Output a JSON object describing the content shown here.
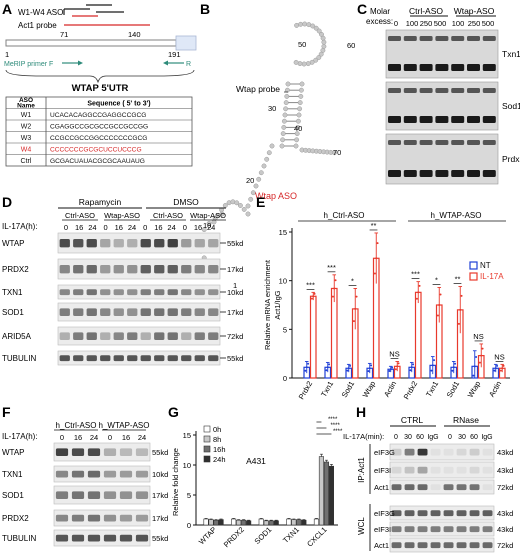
{
  "panels": {
    "A": "A",
    "B": "B",
    "C": "C",
    "D": "D",
    "E": "E",
    "F": "F",
    "G": "G",
    "H": "H"
  },
  "panelA": {
    "aso_label": "W1-W4 ASO",
    "probe_label": "Act1 probe",
    "pos_71": "71",
    "pos_140": "140",
    "pos_1": "1",
    "pos_191": "191",
    "primer_f": "MeRIP primer F",
    "primer_r": "R",
    "utr_title": "WTAP 5'UTR",
    "table_head": [
      "ASO Name",
      "Sequence ( 5' to 3')"
    ],
    "table_rows": [
      {
        "name": "W1",
        "seq": "UCACACAGGCCGAGGCCGCG",
        "red": false
      },
      {
        "name": "W2",
        "seq": "CGAGGCCGCGCCGCCGCCGG",
        "red": false
      },
      {
        "name": "W3",
        "seq": "CCGCCGCCGGCCCCCCCGCG",
        "red": false
      },
      {
        "name": "W4",
        "seq": "CCCCCCCGCGCUCCUCCCG",
        "red": true
      },
      {
        "name": "Ctrl",
        "seq": "GCGACUAUACGCGCAAUAUG",
        "red": false
      }
    ],
    "colors": {
      "red": "#d62728",
      "primer": "#2e8b7a",
      "gray": "#808080"
    }
  },
  "panelB": {
    "probe_label": "Wtap probe",
    "aso_label": "Wtap ASO",
    "nums": [
      "50",
      "60",
      "70",
      "40",
      "30",
      "20",
      "10",
      "1"
    ]
  },
  "panelC": {
    "molar": "Molar",
    "excess": "excess:",
    "ctrl": "Ctrl-ASO",
    "wtap": "Wtap-ASO",
    "lanes": [
      "0",
      "100",
      "250",
      "500",
      "100",
      "250",
      "500"
    ],
    "genes": [
      "Txn1",
      "Sod1",
      "Prdx2"
    ]
  },
  "panelD": {
    "rapa": "Rapamycin",
    "dmso": "DMSO",
    "groups": [
      "Ctrl-ASO",
      "Wtap-ASO",
      "Ctrl-ASO",
      "Wtap-ASO"
    ],
    "il17": "IL-17A(h):",
    "times": [
      "0",
      "16",
      "24",
      "0",
      "16",
      "24",
      "0",
      "16",
      "24",
      "0",
      "16",
      "24"
    ],
    "rows": [
      {
        "name": "WTAP",
        "kd": "55kd"
      },
      {
        "name": "PRDX2",
        "kd": "17kd"
      },
      {
        "name": "TXN1",
        "kd": "10kd"
      },
      {
        "name": "SOD1",
        "kd": "17kd"
      },
      {
        "name": "ARID5A",
        "kd": "72kd"
      },
      {
        "name": "TUBULIN",
        "kd": "55kd"
      }
    ]
  },
  "panelF": {
    "groups": [
      "h_Ctrl-ASO",
      "h_WTAP-ASO"
    ],
    "il17": "IL-17A(h):",
    "times": [
      "0",
      "16",
      "24",
      "0",
      "16",
      "24"
    ],
    "rows": [
      {
        "name": "WTAP",
        "kd": "55kd"
      },
      {
        "name": "TXN1",
        "kd": "10kd"
      },
      {
        "name": "SOD1",
        "kd": "17kd"
      },
      {
        "name": "PRDX2",
        "kd": "17kd"
      },
      {
        "name": "TUBULIN",
        "kd": "55kd"
      }
    ]
  },
  "panelH": {
    "ctrl": "CTRL",
    "rnase": "RNase",
    "il17": "IL-17A(min):",
    "lanes": [
      "0",
      "30",
      "60",
      "IgG",
      "0",
      "30",
      "60",
      "IgG"
    ],
    "ip": "IP:Act1",
    "wcl": "WCL",
    "ip_rows": [
      {
        "name": "eIF3G",
        "kd": "43kd"
      },
      {
        "name": "eIF3I",
        "kd": "43kd"
      },
      {
        "name": "Act1",
        "kd": "72kd"
      }
    ],
    "wcl_rows": [
      {
        "name": "eIF3G",
        "kd": "43kd"
      },
      {
        "name": "eIF3I",
        "kd": "43kd"
      },
      {
        "name": "Act1",
        "kd": "72kd"
      }
    ]
  },
  "chart_data": [
    {
      "type": "bar",
      "panel": "E",
      "ylabel_1": "Relative mRNA enrichment",
      "ylabel_2": "Act1/IgG",
      "group_labels": [
        "h_Ctrl-ASO",
        "h_WTAP-ASO"
      ],
      "categories": [
        "Prdx2",
        "Txn1",
        "Sod1",
        "Wtap",
        "Actin",
        "Prdx2",
        "Txn1",
        "Sod1",
        "Wtap",
        "Actin"
      ],
      "ylim": [
        0,
        15
      ],
      "yticks": [
        "0",
        "5",
        "10",
        "15"
      ],
      "series": [
        {
          "name": "NT",
          "color": "#1f3fd6",
          "values": [
            1.1,
            1.1,
            1.0,
            1.0,
            0.9,
            1.1,
            1.3,
            1.1,
            1.2,
            1.0
          ],
          "errors": [
            0.6,
            0.5,
            0.4,
            0.5,
            0.3,
            0.5,
            0.9,
            0.6,
            1.6,
            0.4
          ]
        },
        {
          "name": "IL-17A",
          "color": "#e8392c",
          "values": [
            8.4,
            9.2,
            7.1,
            12.3,
            1.2,
            8.8,
            7.5,
            7.0,
            2.3,
            1.0
          ],
          "errors": [
            0.4,
            1.4,
            2.1,
            2.6,
            0.5,
            1.1,
            1.8,
            2.4,
            1.2,
            0.4
          ]
        }
      ],
      "significance": [
        "***",
        "***",
        "*",
        "**",
        "NS",
        "***",
        "*",
        "**",
        "NS",
        "NS"
      ],
      "legend": [
        "NT",
        "IL-17A"
      ]
    },
    {
      "type": "bar",
      "panel": "G",
      "title": "A431",
      "ylabel": "Relative fold change",
      "categories": [
        "WTAP",
        "PRDX2",
        "SOD1",
        "TXN1",
        "CXCL1"
      ],
      "ylim": [
        0,
        15
      ],
      "yticks": [
        "0",
        "5",
        "10",
        "15"
      ],
      "series": [
        {
          "name": "0h",
          "color": "#ffffff",
          "values": [
            1.0,
            1.0,
            1.0,
            1.0,
            1.0
          ],
          "errors": [
            0.1,
            0.1,
            0.1,
            0.1,
            0.1
          ]
        },
        {
          "name": "8h",
          "color": "#c8c8c8",
          "values": [
            0.9,
            0.8,
            0.7,
            0.9,
            11.4
          ],
          "errors": [
            0.1,
            0.1,
            0.1,
            0.1,
            0.4
          ]
        },
        {
          "name": "16h",
          "color": "#707070",
          "values": [
            0.8,
            0.8,
            0.7,
            0.9,
            10.5
          ],
          "errors": [
            0.1,
            0.1,
            0.1,
            0.1,
            0.3
          ]
        },
        {
          "name": "24h",
          "color": "#303030",
          "values": [
            0.9,
            0.7,
            0.7,
            0.8,
            9.8
          ],
          "errors": [
            0.1,
            0.1,
            0.1,
            0.1,
            0.3
          ]
        }
      ],
      "significance": [
        "****",
        "****",
        "****"
      ],
      "legend": [
        "0h",
        "8h",
        "16h",
        "24h"
      ]
    }
  ]
}
